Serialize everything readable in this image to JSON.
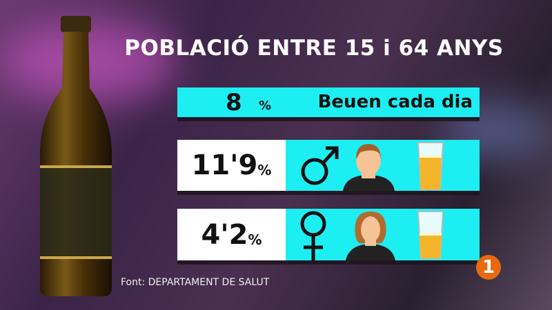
{
  "title": "POBLACIÓ ENTRE 15 i 64 ANYS",
  "daily": {
    "value": "8",
    "unit": "%",
    "label": "Beuen cada dia"
  },
  "rows": [
    {
      "value": "11'9",
      "unit": "%",
      "gender": "male",
      "glass_fill": 0.7
    },
    {
      "value": "4'2",
      "unit": "%",
      "gender": "female",
      "glass_fill": 0.5
    }
  ],
  "source": "Font:  DEPARTAMENT DE SALUT",
  "channel_logo": "1",
  "colors": {
    "accent": "#1ceef2",
    "logo": "#e86a10",
    "beer": "#f3b62a"
  }
}
